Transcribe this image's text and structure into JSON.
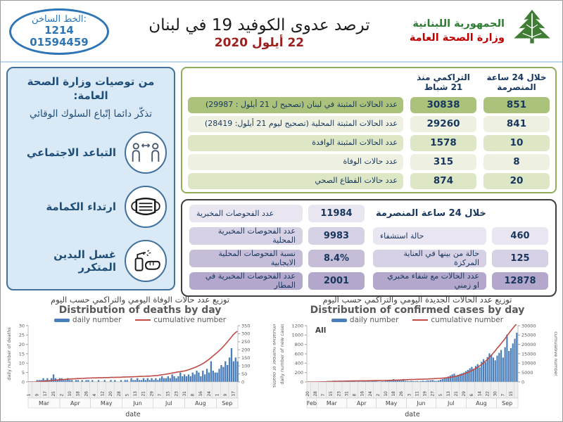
{
  "header": {
    "hotline": {
      "label": "الخط الساخن:",
      "number1": "1214",
      "number2": "01594459"
    },
    "title": "ترصد عدوى الكوفيد 19 في لبنان",
    "date": "22 أيلول 2020",
    "ministry": {
      "line1": "الجمهورية اللبنانية",
      "line2": "وزارة الصحة العامة"
    }
  },
  "sidebar": {
    "heading": "من توصيات وزارة الصحة العامة:",
    "subheading": "تذكّر دائما إتّباع السلوك الوقائي",
    "items": [
      {
        "label": "التباعد الاجتماعي",
        "icon": "social-distancing-icon"
      },
      {
        "label": "ارتداء الكمامة",
        "icon": "face-mask-icon"
      },
      {
        "label": "غسل اليدين المتكرر",
        "icon": "hand-washing-icon"
      }
    ]
  },
  "cases_table": {
    "col_24h": "خلال 24 ساعة المنصرمة",
    "col_cumulative": "التراكمي منذ 21 شباط",
    "rows": [
      {
        "label": "عدد الحالات المثبتة في لبنان  (تصحيح ل 21 أيلول : 29987)",
        "h24": "851",
        "cumulative": "30838"
      },
      {
        "label": "عدد الحالات المثبتة المحلية  (تصحيح ليوم 21 أيلول: 28419)",
        "h24": "841",
        "cumulative": "29260"
      },
      {
        "label": "عدد الحالات المثبتة الوافدة",
        "h24": "10",
        "cumulative": "1578"
      },
      {
        "label": "عدد حالات الوفاة",
        "h24": "8",
        "cumulative": "315"
      },
      {
        "label": "عدد حالات القطاع الصحي",
        "h24": "20",
        "cumulative": "874"
      }
    ]
  },
  "tests_panel": {
    "heading": "خلال 24 ساعة المنصرمة",
    "left_rows": [
      {
        "label": "عدد الفحوصات المخبرية",
        "value": "11984"
      },
      {
        "label": "عدد الفحوصات المخبرية المحلية",
        "value": "9983"
      },
      {
        "label": "نسبة الفحوصات المحلية الايجابية",
        "value": "8.4%"
      },
      {
        "label": "عدد الفحوصات المخبرية في المطار",
        "value": "2001"
      }
    ],
    "right_rows": [
      {
        "label": "حالة استشفاء",
        "value": "460"
      },
      {
        "label": "حالة من بينها في العناية المركزة",
        "value": "125"
      },
      {
        "label": "عدد الحالات مع شفاء مخبري او زمني",
        "value": "12878"
      }
    ]
  },
  "chart_data": [
    {
      "type": "bar",
      "title_ar": "توزيع عدد حالات  الوفاة اليومي والتراكمي حسب اليوم",
      "title": "Distribution of deaths by day",
      "xlabel": "date",
      "ylabel_left": "daily number of deaths",
      "ylabel_right": "cumulative number of deaths",
      "ylim_left": [
        0,
        30
      ],
      "yticks_left": [
        0,
        5,
        10,
        15,
        20,
        25,
        30
      ],
      "ylim_right": [
        0,
        350
      ],
      "yticks_right": [
        0,
        50,
        100,
        150,
        200,
        250,
        300,
        350
      ],
      "legend": [
        "daily number",
        "cumulative number"
      ],
      "colors": {
        "bar": "#4a7ebb",
        "line": "#bf4b47"
      },
      "n_days": 205,
      "sample_step": 2,
      "day_tick_step": 8,
      "day_tick_labels": [
        "1",
        "9",
        "17",
        "25",
        "2",
        "10",
        "18",
        "26",
        "4",
        "12",
        "20",
        "28",
        "5",
        "13",
        "21",
        "29",
        "7",
        "15",
        "23",
        "31",
        "8",
        "16",
        "24",
        "1",
        "9",
        "17"
      ],
      "months": [
        {
          "label": "Mar",
          "days": 31
        },
        {
          "label": "Apr",
          "days": 30
        },
        {
          "label": "May",
          "days": 31
        },
        {
          "label": "Jun",
          "days": 30
        },
        {
          "label": "Jul",
          "days": 31
        },
        {
          "label": "Aug",
          "days": 31
        },
        {
          "label": "Sep",
          "days": 21
        }
      ],
      "series": [
        {
          "name": "daily number",
          "kind": "bar",
          "values": [
            0,
            0,
            0,
            0,
            1,
            1,
            1,
            2,
            1,
            2,
            1,
            2,
            4,
            2,
            1,
            2,
            2,
            1,
            1,
            2,
            1,
            1,
            0,
            1,
            1,
            0,
            1,
            0,
            1,
            1,
            0,
            1,
            0,
            0,
            1,
            0,
            0,
            1,
            0,
            0,
            1,
            0,
            1,
            0,
            0,
            1,
            0,
            1,
            1,
            0,
            2,
            1,
            1,
            2,
            1,
            1,
            2,
            1,
            2,
            1,
            2,
            1,
            2,
            1,
            2,
            3,
            2,
            2,
            3,
            2,
            4,
            3,
            2,
            3,
            5,
            3,
            4,
            3,
            4,
            3,
            5,
            4,
            6,
            5,
            3,
            6,
            4,
            7,
            5,
            11,
            6,
            5,
            5,
            7,
            9,
            8,
            11,
            9,
            13,
            18,
            11,
            13,
            11
          ]
        },
        {
          "name": "cumulative number",
          "kind": "line",
          "values": [
            0,
            0,
            0,
            0,
            1,
            2,
            3,
            4,
            5,
            6,
            7,
            8,
            10,
            11,
            12,
            13,
            14,
            15,
            16,
            17,
            18,
            19,
            19,
            20,
            21,
            21,
            22,
            22,
            23,
            24,
            24,
            25,
            25,
            25,
            26,
            26,
            26,
            27,
            27,
            27,
            28,
            28,
            28,
            29,
            29,
            29,
            30,
            30,
            31,
            31,
            32,
            32,
            33,
            33,
            34,
            34,
            35,
            35,
            36,
            36,
            37,
            38,
            39,
            40,
            42,
            44,
            46,
            48,
            50,
            52,
            55,
            57,
            60,
            62,
            64,
            66,
            68,
            71,
            75,
            79,
            84,
            89,
            94,
            100,
            106,
            113,
            121,
            130,
            139,
            149,
            160,
            171,
            181,
            193,
            205,
            218,
            232,
            247,
            262,
            278,
            294,
            306,
            315
          ]
        }
      ]
    },
    {
      "type": "bar",
      "title_ar": "توزيع عدد الحالات الجديدة اليومي والتراكمي حسب اليوم",
      "title": "Distribution of confirmed cases by day",
      "corner_label": "All",
      "xlabel": "date",
      "ylabel_left": "daily number of new cases",
      "ylabel_right": "cumulative number",
      "ylim_left": [
        0,
        1200
      ],
      "yticks_left": [
        0,
        200,
        400,
        600,
        800,
        1000,
        1200
      ],
      "ylim_right": [
        0,
        30000
      ],
      "yticks_right": [
        0,
        5000,
        10000,
        15000,
        20000,
        25000,
        30000
      ],
      "legend": [
        "daily number",
        "cumulative number"
      ],
      "colors": {
        "bar": "#4a7ebb",
        "line": "#bf4b47"
      },
      "n_days": 216,
      "sample_step": 2,
      "day_tick_step": 8,
      "day_tick_labels": [
        "20",
        "28",
        "7",
        "15",
        "23",
        "31",
        "8",
        "16",
        "24",
        "2",
        "10",
        "18",
        "26",
        "3",
        "11",
        "19",
        "27",
        "5",
        "13",
        "21",
        "29",
        "6",
        "14",
        "22",
        "30",
        "7",
        "15"
      ],
      "months": [
        {
          "label": "Feb",
          "days": 10
        },
        {
          "label": "Mar",
          "days": 31
        },
        {
          "label": "Apr",
          "days": 30
        },
        {
          "label": "May",
          "days": 31
        },
        {
          "label": "Jun",
          "days": 30
        },
        {
          "label": "Jul",
          "days": 31
        },
        {
          "label": "Aug",
          "days": 31
        },
        {
          "label": "Sep",
          "days": 22
        }
      ],
      "series": [
        {
          "name": "daily number",
          "kind": "bar",
          "values": [
            0,
            1,
            2,
            2,
            3,
            4,
            8,
            10,
            12,
            15,
            18,
            22,
            20,
            25,
            28,
            22,
            18,
            26,
            20,
            24,
            30,
            16,
            12,
            20,
            14,
            10,
            16,
            8,
            12,
            14,
            10,
            18,
            12,
            20,
            16,
            25,
            10,
            8,
            14,
            12,
            20,
            30,
            36,
            28,
            60,
            32,
            45,
            38,
            30,
            62,
            24,
            20,
            15,
            25,
            18,
            14,
            22,
            12,
            20,
            25,
            18,
            30,
            28,
            35,
            40,
            25,
            22,
            30,
            45,
            60,
            75,
            95,
            115,
            135,
            160,
            175,
            130,
            150,
            170,
            185,
            200,
            230,
            255,
            290,
            320,
            280,
            340,
            380,
            310,
            430,
            485,
            420,
            530,
            610,
            580,
            520,
            460,
            560,
            620,
            680,
            520,
            740,
            1010,
            660,
            720,
            820,
            920,
            1050
          ]
        },
        {
          "name": "cumulative number",
          "kind": "line",
          "values": [
            0,
            1,
            3,
            5,
            8,
            13,
            26,
            42,
            61,
            85,
            115,
            150,
            187,
            225,
            262,
            297,
            330,
            360,
            388,
            415,
            446,
            485,
            505,
            525,
            541,
            556,
            570,
            582,
            594,
            605,
            617,
            630,
            644,
            658,
            673,
            700,
            717,
            730,
            745,
            760,
            778,
            798,
            822,
            850,
            882,
            918,
            958,
            1000,
            1045,
            1100,
            1160,
            1215,
            1252,
            1285,
            1316,
            1345,
            1374,
            1400,
            1428,
            1460,
            1496,
            1538,
            1585,
            1638,
            1698,
            1765,
            1810,
            1865,
            1930,
            2005,
            2090,
            2190,
            2308,
            2445,
            2605,
            2795,
            3020,
            3270,
            3550,
            3860,
            4200,
            4580,
            5010,
            5470,
            5970,
            6510,
            7100,
            7740,
            8440,
            9200,
            10020,
            10920,
            11890,
            12930,
            14040,
            15220,
            16470,
            17800,
            19020,
            20280,
            21580,
            22920,
            24300,
            25720,
            27180,
            28420,
            29720,
            30838
          ]
        }
      ]
    }
  ]
}
